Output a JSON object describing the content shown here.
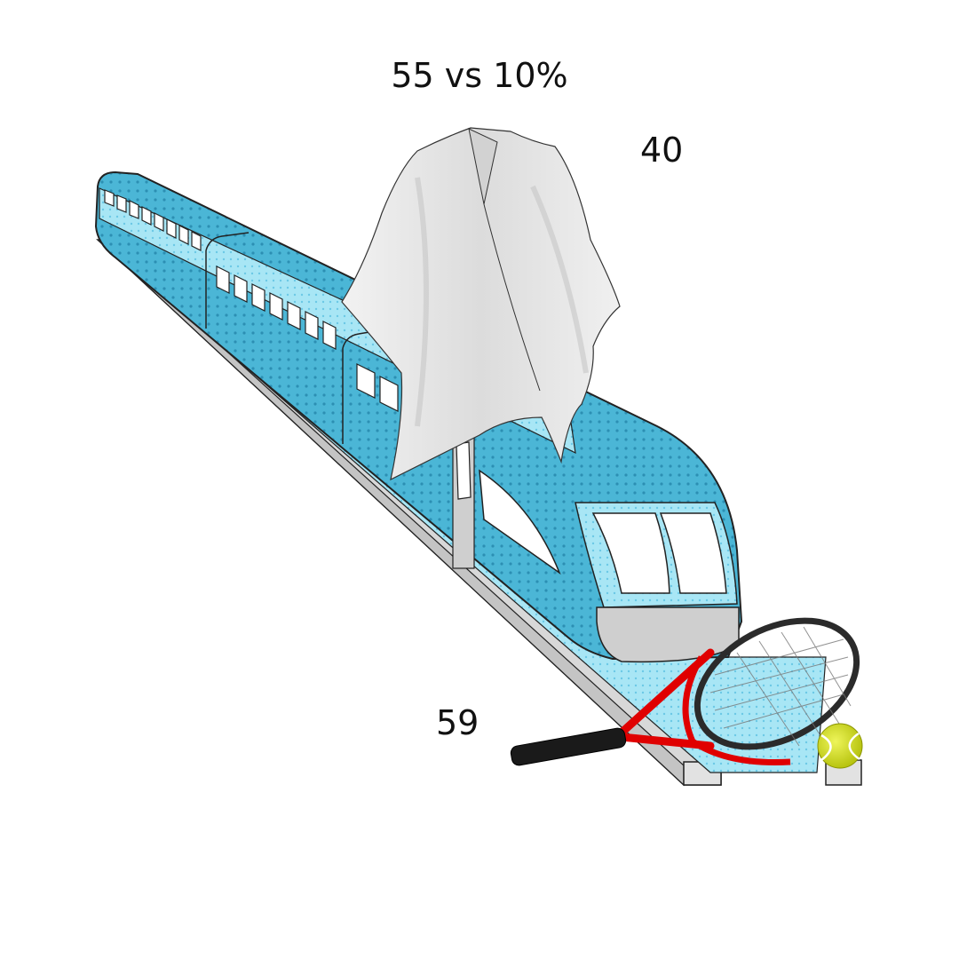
{
  "labels": {
    "top": "55 vs 10%",
    "right": "40",
    "bottom": "59"
  },
  "icons": [
    "train-icon",
    "poncho-icon",
    "tennis-racket-icon",
    "tennis-ball-icon"
  ],
  "colors": {
    "background": "#ffffff",
    "train_body": "#4bb6d6",
    "train_light": "#a8e6f5",
    "train_dot": "#2c8fb3",
    "rail": "#d8d8d8",
    "poncho": "#e6e6e6",
    "racket_frame": "#e00000",
    "racket_head": "#2b2b2b",
    "ball": "#d7e51a",
    "text": "#111111"
  }
}
